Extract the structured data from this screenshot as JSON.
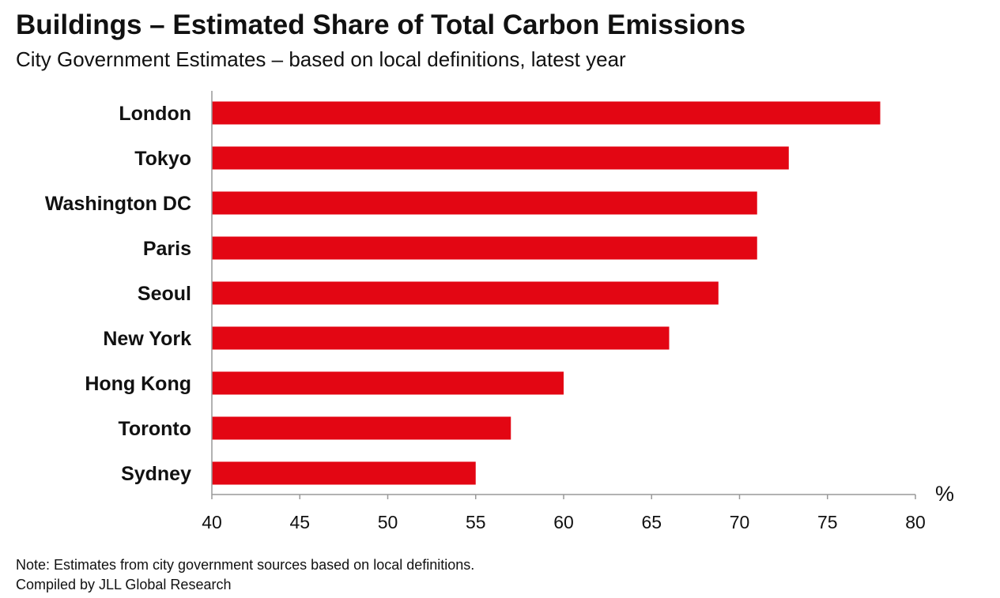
{
  "header": {
    "title": "Buildings – Estimated Share of Total Carbon Emissions",
    "subtitle": "City Government Estimates – based on local definitions, latest year"
  },
  "footer": {
    "note": "Note: Estimates from city government sources based on local definitions.",
    "source": "Compiled by JLL Global Research"
  },
  "colors": {
    "bar": "#e30613",
    "axis": "#999999"
  },
  "chart_data": {
    "type": "bar",
    "orientation": "horizontal",
    "title": "Buildings – Estimated Share of Total Carbon Emissions",
    "subtitle": "City Government Estimates – based on local definitions, latest year",
    "categories": [
      "London",
      "Tokyo",
      "Washington DC",
      "Paris",
      "Seoul",
      "New York",
      "Hong Kong",
      "Toronto",
      "Sydney"
    ],
    "values": [
      78,
      72.8,
      71,
      71,
      68.8,
      66,
      60,
      57,
      55
    ],
    "xlim": [
      40,
      80
    ],
    "xticks": [
      40,
      45,
      50,
      55,
      60,
      65,
      70,
      75,
      80
    ],
    "xunit": "%",
    "grid": false,
    "legend": "none"
  }
}
